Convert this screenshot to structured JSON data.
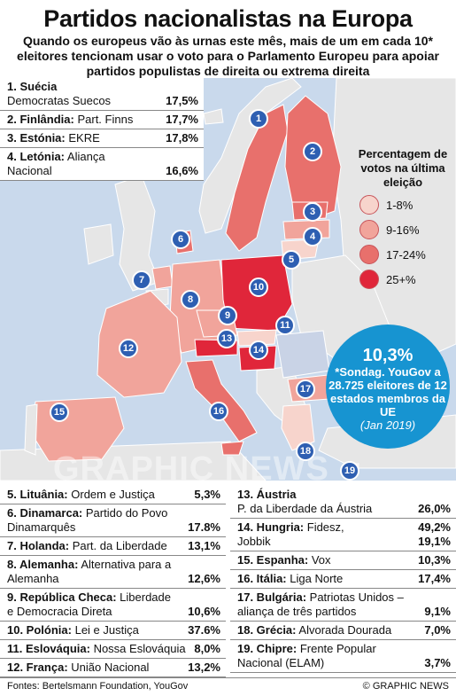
{
  "title": "Partidos nacionalistas na Europa",
  "subtitle": "Quando os europeus vão às urnas este mês, mais de um em cada 10* eleitores tencionam usar o voto para o Parlamento Europeu para apoiar partidos populistas de direita ou extrema direita",
  "legend": {
    "title": "Percentagem de votos na última eleição",
    "items": [
      {
        "label": "1-8%",
        "color": "#f7d4cc"
      },
      {
        "label": "9-16%",
        "color": "#f1a49b"
      },
      {
        "label": "17-24%",
        "color": "#e8706c"
      },
      {
        "label": "25+%",
        "color": "#e0263a"
      }
    ]
  },
  "bubble": {
    "big": "10,3%",
    "text": "*Sondag. YouGov a 28.725 eleitores de 12 estados membros da UE",
    "date": "(Jan 2019)"
  },
  "watermark": "GRAPHIC NEWS",
  "markers": [
    "1",
    "2",
    "3",
    "4",
    "5",
    "6",
    "7",
    "8",
    "9",
    "10",
    "11",
    "12",
    "13",
    "14",
    "15",
    "16",
    "17",
    "18",
    "19"
  ],
  "top_entries": [
    {
      "name": "1. Suécia",
      "party": "Democratas Suecos",
      "value": "17,5%"
    },
    {
      "name": "2. Finlândia:",
      "party": "Part. Finns",
      "value": "17,7%"
    },
    {
      "name": "3. Estónia:",
      "party": "EKRE",
      "value": "17,8%"
    },
    {
      "name": "4. Letónia:",
      "party": "Aliança Nacional",
      "value": "16,6%"
    }
  ],
  "left_entries": [
    {
      "name": "5. Lituânia:",
      "party": "Ordem e Justiça",
      "value": "5,3%"
    },
    {
      "name": "6. Dinamarca:",
      "party": "Partido do Povo Dinamarquês",
      "value": "17.8%"
    },
    {
      "name": "7. Holanda:",
      "party": "Part. da Liberdade",
      "value": "13,1%"
    },
    {
      "name": "8. Alemanha:",
      "party": "Alternativa para a Alemanha",
      "value": "12,6%"
    },
    {
      "name": "9. República Checa:",
      "party": "Liberdade e Democracia Direta",
      "value": "10,6%"
    },
    {
      "name": "10. Polónia:",
      "party": "Lei e Justiça",
      "value": "37.6%"
    },
    {
      "name": "11. Eslováquia:",
      "party": "Nossa Eslováquia",
      "value": "8,0%"
    },
    {
      "name": "12. França:",
      "party": "União Nacional",
      "value": "13,2%"
    }
  ],
  "right_entries": [
    {
      "name": "13. Áustria",
      "party": "P. da Liberdade da Áustria",
      "value": "26,0%"
    },
    {
      "name": "14. Hungria:",
      "party": "Fidesz,",
      "value": "49,2%",
      "party2": "Jobbik",
      "value2": "19,1%"
    },
    {
      "name": "15. Espanha:",
      "party": "Vox",
      "value": "10,3%"
    },
    {
      "name": "16. Itália:",
      "party": "Liga Norte",
      "value": "17,4%"
    },
    {
      "name": "17. Bulgária:",
      "party": "Patriotas Unidos – aliança de três partidos",
      "value": "9,1%"
    },
    {
      "name": "18. Grécia:",
      "party": "Alvorada Dourada",
      "value": "7,0%"
    },
    {
      "name": "19. Chipre:",
      "party": "Frente Popular Nacional (ELAM)",
      "value": "3,7%"
    }
  ],
  "footer": {
    "sources": "Fontes: Bertelsmann Foundation, YouGov",
    "credit": "© GRAPHIC NEWS"
  }
}
